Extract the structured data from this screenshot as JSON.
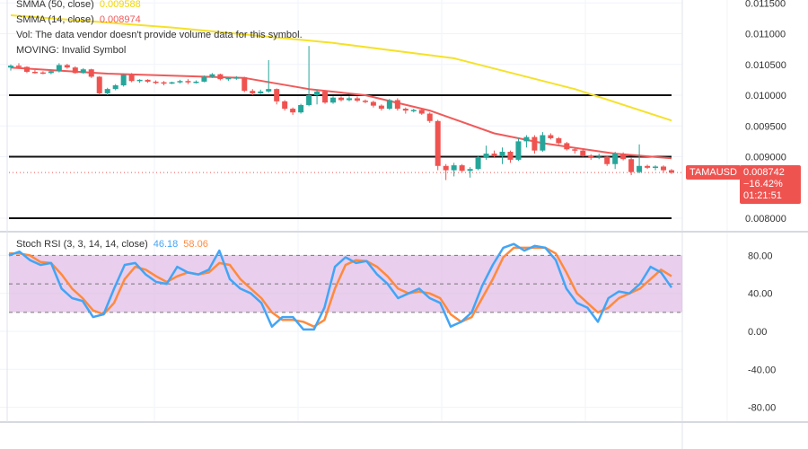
{
  "legend": {
    "smma50": {
      "label": "SMMA (50, close)",
      "value": "0.009588",
      "color": "#f5e12a"
    },
    "smma14": {
      "label": "SMMA (14, close)",
      "value": "0.008974",
      "color": "#f05a5a"
    },
    "vol": "Vol: The data vendor doesn't provide volume data for this symbol.",
    "moving": "MOVING: Invalid Symbol"
  },
  "price_tag": {
    "symbol": "TAMAUSD",
    "price": "0.008742",
    "change": "−16.42%",
    "countdown": "01:21:51",
    "color": "#ef5350"
  },
  "stoch_legend": {
    "label": "Stoch RSI (3, 3, 14, 14, close)",
    "k_value": "46.18",
    "d_value": "58.06",
    "k_color": "#42a5f5",
    "d_color": "#ff8a3d"
  },
  "chart_data": [
    {
      "type": "candlestick",
      "title": "TAMAUSD",
      "ylim": [
        0.0079,
        0.0116
      ],
      "y_ticks": [
        "0.011500",
        "0.011000",
        "0.010500",
        "0.010000",
        "0.009500",
        "0.009000",
        "0.008000"
      ],
      "horizontal_levels": [
        0.01,
        0.009,
        0.008
      ],
      "last_price": 0.008742,
      "colors": {
        "up": "#26a69a",
        "down": "#ef5350"
      },
      "candles_ohlc": [
        [
          0.01045,
          0.0105,
          0.0104,
          0.01048
        ],
        [
          0.01048,
          0.01052,
          0.01044,
          0.01046
        ],
        [
          0.01046,
          0.01047,
          0.01036,
          0.01038
        ],
        [
          0.01038,
          0.01041,
          0.01035,
          0.01037
        ],
        [
          0.01037,
          0.01039,
          0.01034,
          0.01036
        ],
        [
          0.01036,
          0.0104,
          0.01034,
          0.01039
        ],
        [
          0.01039,
          0.01052,
          0.01037,
          0.01049
        ],
        [
          0.01049,
          0.01051,
          0.01043,
          0.01045
        ],
        [
          0.01045,
          0.01047,
          0.01035,
          0.01036
        ],
        [
          0.01036,
          0.01044,
          0.01035,
          0.01042
        ],
        [
          0.01042,
          0.01043,
          0.01028,
          0.0103
        ],
        [
          0.0103,
          0.01031,
          0.01001,
          0.01003
        ],
        [
          0.01003,
          0.01012,
          0.01,
          0.0101
        ],
        [
          0.0101,
          0.01018,
          0.01008,
          0.01016
        ],
        [
          0.01016,
          0.01035,
          0.01014,
          0.01033
        ],
        [
          0.01033,
          0.01036,
          0.01021,
          0.01023
        ],
        [
          0.01023,
          0.01026,
          0.0102,
          0.01025
        ],
        [
          0.01025,
          0.01026,
          0.0102,
          0.01022
        ],
        [
          0.01022,
          0.01024,
          0.01018,
          0.01021
        ],
        [
          0.01021,
          0.01023,
          0.01016,
          0.01019
        ],
        [
          0.01019,
          0.01022,
          0.01018,
          0.01021
        ],
        [
          0.01021,
          0.01025,
          0.01019,
          0.01023
        ],
        [
          0.01023,
          0.01026,
          0.01018,
          0.01021
        ],
        [
          0.01021,
          0.01024,
          0.01019,
          0.01022
        ],
        [
          0.01022,
          0.01032,
          0.01021,
          0.0103
        ],
        [
          0.0103,
          0.01036,
          0.01028,
          0.01034
        ],
        [
          0.01034,
          0.01035,
          0.01024,
          0.01026
        ],
        [
          0.01026,
          0.01029,
          0.01023,
          0.01028
        ],
        [
          0.01028,
          0.01031,
          0.01025,
          0.01029
        ],
        [
          0.01029,
          0.0103,
          0.01005,
          0.01007
        ],
        [
          0.01007,
          0.0101,
          0.01,
          0.01003
        ],
        [
          0.01003,
          0.01009,
          0.01002,
          0.01006
        ],
        [
          0.01006,
          0.01057,
          0.01004,
          0.0101
        ],
        [
          0.0101,
          0.01011,
          0.00985,
          0.0099
        ],
        [
          0.0099,
          0.00992,
          0.00975,
          0.00978
        ],
        [
          0.00978,
          0.0098,
          0.00968,
          0.00972
        ],
        [
          0.00972,
          0.00986,
          0.0097,
          0.00984
        ],
        [
          0.00984,
          0.0108,
          0.00982,
          0.01
        ],
        [
          0.01,
          0.01009,
          0.00985,
          0.01006
        ],
        [
          0.01006,
          0.01008,
          0.00986,
          0.00988
        ],
        [
          0.00988,
          0.00998,
          0.00986,
          0.00996
        ],
        [
          0.00996,
          0.00998,
          0.0099,
          0.00992
        ],
        [
          0.00992,
          0.00998,
          0.0099,
          0.00995
        ],
        [
          0.00995,
          0.00998,
          0.00989,
          0.00991
        ],
        [
          0.00991,
          0.00993,
          0.00987,
          0.00989
        ],
        [
          0.00989,
          0.00991,
          0.0098,
          0.00983
        ],
        [
          0.00983,
          0.00985,
          0.00975,
          0.00978
        ],
        [
          0.00978,
          0.00994,
          0.00976,
          0.00992
        ],
        [
          0.00992,
          0.00995,
          0.00975,
          0.00978
        ],
        [
          0.00978,
          0.0098,
          0.0097,
          0.00975
        ],
        [
          0.00975,
          0.00978,
          0.00972,
          0.00976
        ],
        [
          0.00976,
          0.00978,
          0.00968,
          0.0097
        ],
        [
          0.0097,
          0.00972,
          0.00955,
          0.00958
        ],
        [
          0.00958,
          0.0096,
          0.00878,
          0.00885
        ],
        [
          0.00885,
          0.00888,
          0.00862,
          0.00878
        ],
        [
          0.00878,
          0.0089,
          0.00868,
          0.00886
        ],
        [
          0.00886,
          0.00888,
          0.00875,
          0.00877
        ],
        [
          0.00877,
          0.00883,
          0.00866,
          0.0088
        ],
        [
          0.0088,
          0.00902,
          0.00878,
          0.00898
        ],
        [
          0.00898,
          0.00918,
          0.00895,
          0.00905
        ],
        [
          0.00905,
          0.0091,
          0.00898,
          0.00902
        ],
        [
          0.00902,
          0.00915,
          0.00888,
          0.00908
        ],
        [
          0.00908,
          0.0091,
          0.0089,
          0.00895
        ],
        [
          0.00895,
          0.0093,
          0.00893,
          0.00925
        ],
        [
          0.00925,
          0.00935,
          0.00915,
          0.00932
        ],
        [
          0.00932,
          0.00935,
          0.00905,
          0.0091
        ],
        [
          0.0091,
          0.0094,
          0.00908,
          0.00935
        ],
        [
          0.00935,
          0.00938,
          0.00928,
          0.0093
        ],
        [
          0.0093,
          0.00932,
          0.0092,
          0.00922
        ],
        [
          0.00922,
          0.00924,
          0.0091,
          0.00912
        ],
        [
          0.00912,
          0.00915,
          0.00905,
          0.0091
        ],
        [
          0.0091,
          0.00912,
          0.009,
          0.00902
        ],
        [
          0.00902,
          0.00904,
          0.00895,
          0.00898
        ],
        [
          0.00898,
          0.00905,
          0.00896,
          0.009
        ],
        [
          0.009,
          0.00902,
          0.00885,
          0.00888
        ],
        [
          0.00888,
          0.00908,
          0.0088,
          0.00905
        ],
        [
          0.00905,
          0.00907,
          0.00894,
          0.00896
        ],
        [
          0.00896,
          0.00898,
          0.0087,
          0.00875
        ],
        [
          0.00875,
          0.0092,
          0.00873,
          0.00885
        ],
        [
          0.00885,
          0.00887,
          0.0088,
          0.00882
        ],
        [
          0.00882,
          0.00886,
          0.00878,
          0.00884
        ],
        [
          0.00884,
          0.00886,
          0.00874,
          0.00878
        ],
        [
          0.00878,
          0.0088,
          0.00872,
          0.00874
        ]
      ],
      "series": [
        {
          "name": "SMMA (50, close)",
          "color": "#f5e12a",
          "points": [
            [
              0,
              0.0113
            ],
            [
              20,
              0.0111
            ],
            [
              40,
              0.01085
            ],
            [
              55,
              0.0106
            ],
            [
              70,
              0.0101
            ],
            [
              82,
              0.009588
            ]
          ]
        },
        {
          "name": "SMMA (14, close)",
          "color": "#f05a5a",
          "points": [
            [
              0,
              0.01045
            ],
            [
              12,
              0.01035
            ],
            [
              29,
              0.01028
            ],
            [
              37,
              0.0101
            ],
            [
              44,
              0.01
            ],
            [
              52,
              0.00975
            ],
            [
              60,
              0.00938
            ],
            [
              66,
              0.00922
            ],
            [
              75,
              0.00905
            ],
            [
              82,
              0.008974
            ]
          ]
        }
      ]
    },
    {
      "type": "line",
      "title": "Stoch RSI (3, 3, 14, 14, close)",
      "ylim": [
        -100,
        100
      ],
      "y_ticks": [
        "80.00",
        "40.00",
        "0.00",
        "-40.00",
        "-80.00"
      ],
      "band": [
        20,
        80
      ],
      "band_color": "#e1bee7",
      "series": [
        {
          "name": "K",
          "color": "#42a5f5",
          "values": [
            80,
            84,
            75,
            70,
            72,
            45,
            35,
            32,
            15,
            18,
            45,
            70,
            72,
            60,
            52,
            50,
            68,
            62,
            60,
            65,
            85,
            55,
            45,
            40,
            30,
            5,
            15,
            15,
            2,
            2,
            25,
            68,
            78,
            72,
            74,
            60,
            50,
            35,
            40,
            45,
            35,
            30,
            5,
            10,
            20,
            48,
            70,
            88,
            92,
            85,
            90,
            88,
            75,
            45,
            30,
            25,
            10,
            35,
            42,
            40,
            50,
            68,
            62,
            46.18
          ]
        },
        {
          "name": "D",
          "color": "#ff8a3d",
          "values": [
            82,
            82,
            80,
            73,
            72,
            60,
            45,
            35,
            22,
            18,
            30,
            55,
            68,
            65,
            58,
            52,
            58,
            62,
            60,
            62,
            72,
            70,
            55,
            45,
            35,
            20,
            12,
            12,
            10,
            5,
            12,
            45,
            70,
            75,
            74,
            68,
            58,
            45,
            40,
            42,
            40,
            35,
            18,
            10,
            15,
            35,
            55,
            78,
            88,
            88,
            88,
            88,
            82,
            62,
            40,
            30,
            20,
            25,
            35,
            40,
            45,
            55,
            65,
            58.06
          ]
        }
      ]
    }
  ]
}
